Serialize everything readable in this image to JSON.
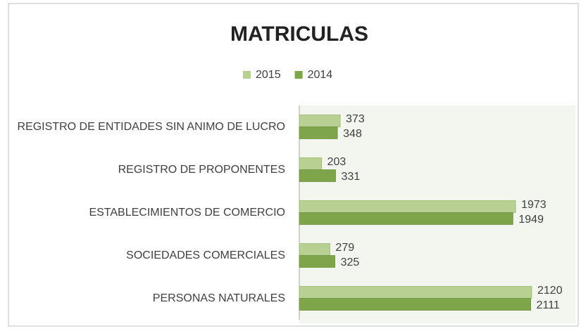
{
  "chart_data": {
    "type": "barh",
    "title": "MATRICULAS",
    "categories": [
      "REGISTRO DE ENTIDADES SIN ANIMO DE LUCRO",
      "REGISTRO DE PROPONENTES",
      "ESTABLECIMIENTOS DE COMERCIO",
      "SOCIEDADES COMERCIALES",
      "PERSONAS NATURALES"
    ],
    "series": [
      {
        "name": "2015",
        "color": "#b8d192",
        "values": [
          373,
          203,
          1973,
          279,
          2120
        ]
      },
      {
        "name": "2014",
        "color": "#7ea54a",
        "values": [
          348,
          331,
          1949,
          325,
          2111
        ]
      }
    ],
    "legend": "top"
  }
}
